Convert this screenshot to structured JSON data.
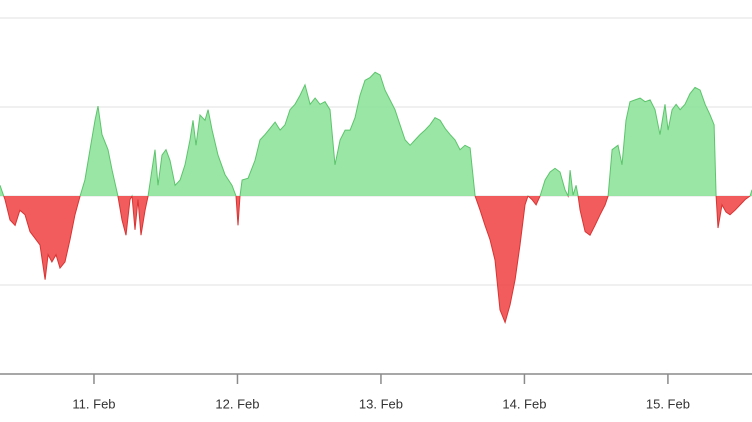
{
  "chart_data": {
    "type": "area",
    "x": [
      10.345,
      10.38,
      10.415,
      10.45,
      10.484,
      10.519,
      10.554,
      10.624,
      10.659,
      10.68,
      10.707,
      10.735,
      10.763,
      10.798,
      10.833,
      10.868,
      10.903,
      10.937,
      10.972,
      11.007,
      11.028,
      11.056,
      11.098,
      11.126,
      11.167,
      11.195,
      11.223,
      11.251,
      11.265,
      11.286,
      11.307,
      11.328,
      11.356,
      11.377,
      11.404,
      11.425,
      11.446,
      11.474,
      11.502,
      11.53,
      11.565,
      11.6,
      11.634,
      11.669,
      11.69,
      11.711,
      11.739,
      11.774,
      11.795,
      11.823,
      11.864,
      11.913,
      11.962,
      11.99,
      12.004,
      12.018,
      12.032,
      12.074,
      12.122,
      12.157,
      12.192,
      12.227,
      12.262,
      12.297,
      12.331,
      12.366,
      12.401,
      12.436,
      12.471,
      12.506,
      12.541,
      12.575,
      12.61,
      12.645,
      12.68,
      12.715,
      12.75,
      12.785,
      12.819,
      12.854,
      12.889,
      12.924,
      12.959,
      12.994,
      13.028,
      13.063,
      13.098,
      13.133,
      13.168,
      13.203,
      13.238,
      13.272,
      13.307,
      13.342,
      13.377,
      13.412,
      13.447,
      13.482,
      13.516,
      13.551,
      13.586,
      13.621,
      13.656,
      13.691,
      13.725,
      13.76,
      13.795,
      13.83,
      13.865,
      13.9,
      13.935,
      13.969,
      14.004,
      14.025,
      14.053,
      14.081,
      14.109,
      14.144,
      14.179,
      14.213,
      14.248,
      14.283,
      14.304,
      14.318,
      14.339,
      14.36,
      14.374,
      14.388,
      14.423,
      14.457,
      14.492,
      14.527,
      14.562,
      14.583,
      14.611,
      14.652,
      14.68,
      14.708,
      14.736,
      14.771,
      14.806,
      14.841,
      14.876,
      14.91,
      14.945,
      14.98,
      15.001,
      15.029,
      15.057,
      15.085,
      15.119,
      15.154,
      15.189,
      15.224,
      15.259,
      15.294,
      15.322,
      15.336,
      15.349,
      15.377,
      15.405,
      15.433,
      15.468,
      15.503,
      15.538,
      15.573,
      15.586
    ],
    "series": [
      {
        "values": [
          0.12,
          -0.04,
          -0.27,
          -0.33,
          -0.16,
          -0.21,
          -0.4,
          -0.55,
          -0.94,
          -0.66,
          -0.74,
          -0.66,
          -0.81,
          -0.74,
          -0.49,
          -0.21,
          0,
          0.18,
          0.52,
          0.85,
          1.01,
          0.69,
          0.52,
          0.29,
          0,
          -0.27,
          -0.44,
          -0.04,
          0,
          -0.38,
          -0.04,
          -0.44,
          -0.16,
          0,
          0.29,
          0.52,
          0.12,
          0.46,
          0.52,
          0.4,
          0.12,
          0.18,
          0.35,
          0.63,
          0.85,
          0.57,
          0.91,
          0.85,
          0.97,
          0.74,
          0.46,
          0.24,
          0.12,
          0,
          -0.33,
          0,
          0.18,
          0.2,
          0.4,
          0.63,
          0.69,
          0.76,
          0.83,
          0.74,
          0.8,
          0.97,
          1.03,
          1.13,
          1.25,
          1.03,
          1.1,
          1.03,
          1.06,
          0.97,
          0.35,
          0.63,
          0.74,
          0.74,
          0.88,
          1.13,
          1.3,
          1.33,
          1.39,
          1.36,
          1.19,
          1.08,
          0.97,
          0.8,
          0.63,
          0.57,
          0.63,
          0.69,
          0.74,
          0.8,
          0.88,
          0.85,
          0.76,
          0.69,
          0.63,
          0.52,
          0.57,
          0.54,
          0,
          -0.16,
          -0.33,
          -0.49,
          -0.72,
          -1.28,
          -1.42,
          -1.22,
          -0.94,
          -0.55,
          -0.1,
          0,
          -0.04,
          -0.1,
          0,
          0.18,
          0.27,
          0.31,
          0.27,
          0.07,
          0,
          0.29,
          0.01,
          0.12,
          0,
          -0.16,
          -0.4,
          -0.44,
          -0.33,
          -0.21,
          -0.1,
          0,
          0.52,
          0.57,
          0.35,
          0.85,
          1.06,
          1.08,
          1.1,
          1.06,
          1.08,
          0.97,
          0.69,
          1.03,
          0.74,
          0.97,
          1.03,
          0.97,
          1.03,
          1.15,
          1.22,
          1.19,
          1.03,
          0.91,
          0.8,
          0,
          -0.36,
          -0.1,
          -0.18,
          -0.21,
          -0.16,
          -0.1,
          -0.04,
          0,
          0.07
        ],
        "color": "#8ee39b",
        "negative_color": "#f04a4a"
      }
    ],
    "xlim": [
      10.345,
      15.586
    ],
    "xticks": [
      {
        "value": 11,
        "label": "11. Feb"
      },
      {
        "value": 12,
        "label": "12. Feb"
      },
      {
        "value": 13,
        "label": "13. Feb"
      },
      {
        "value": 14,
        "label": "14. Feb"
      },
      {
        "value": 15,
        "label": "15. Feb"
      }
    ],
    "ylim": [
      -2,
      2
    ],
    "yticks": [
      -2,
      -1,
      0,
      1,
      2
    ],
    "grid": true
  }
}
